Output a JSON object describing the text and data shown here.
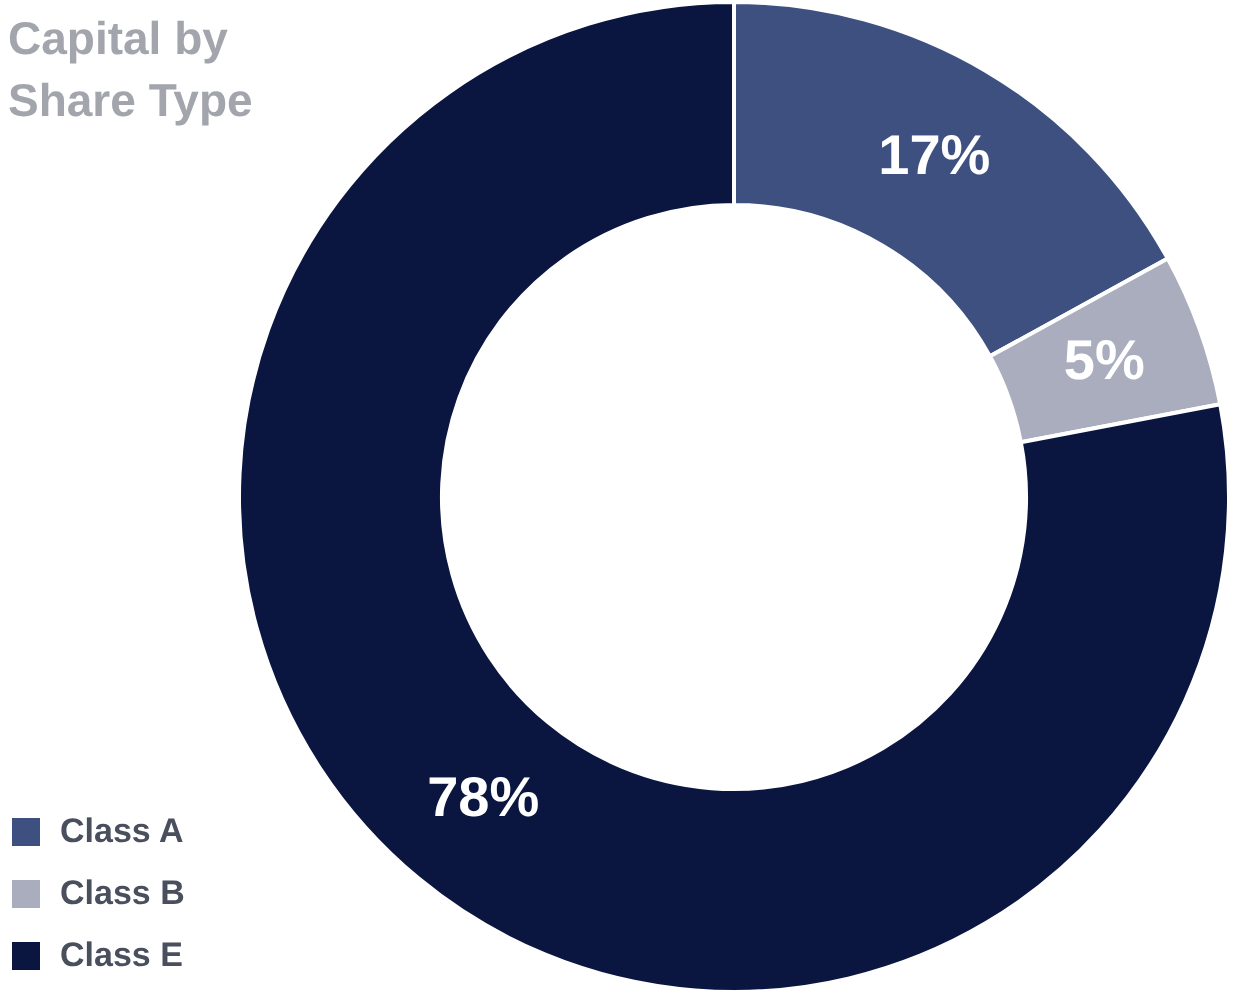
{
  "chart_data": {
    "type": "donut",
    "title": "Capital by\nShare Type",
    "categories": [
      "Class A",
      "Class B",
      "Class E"
    ],
    "values": [
      17,
      5,
      78
    ],
    "colors": [
      "#3d5080",
      "#a9adbd",
      "#0b1640"
    ],
    "value_labels": [
      "17%",
      "5%",
      "78%"
    ],
    "legend": "bottom left"
  }
}
